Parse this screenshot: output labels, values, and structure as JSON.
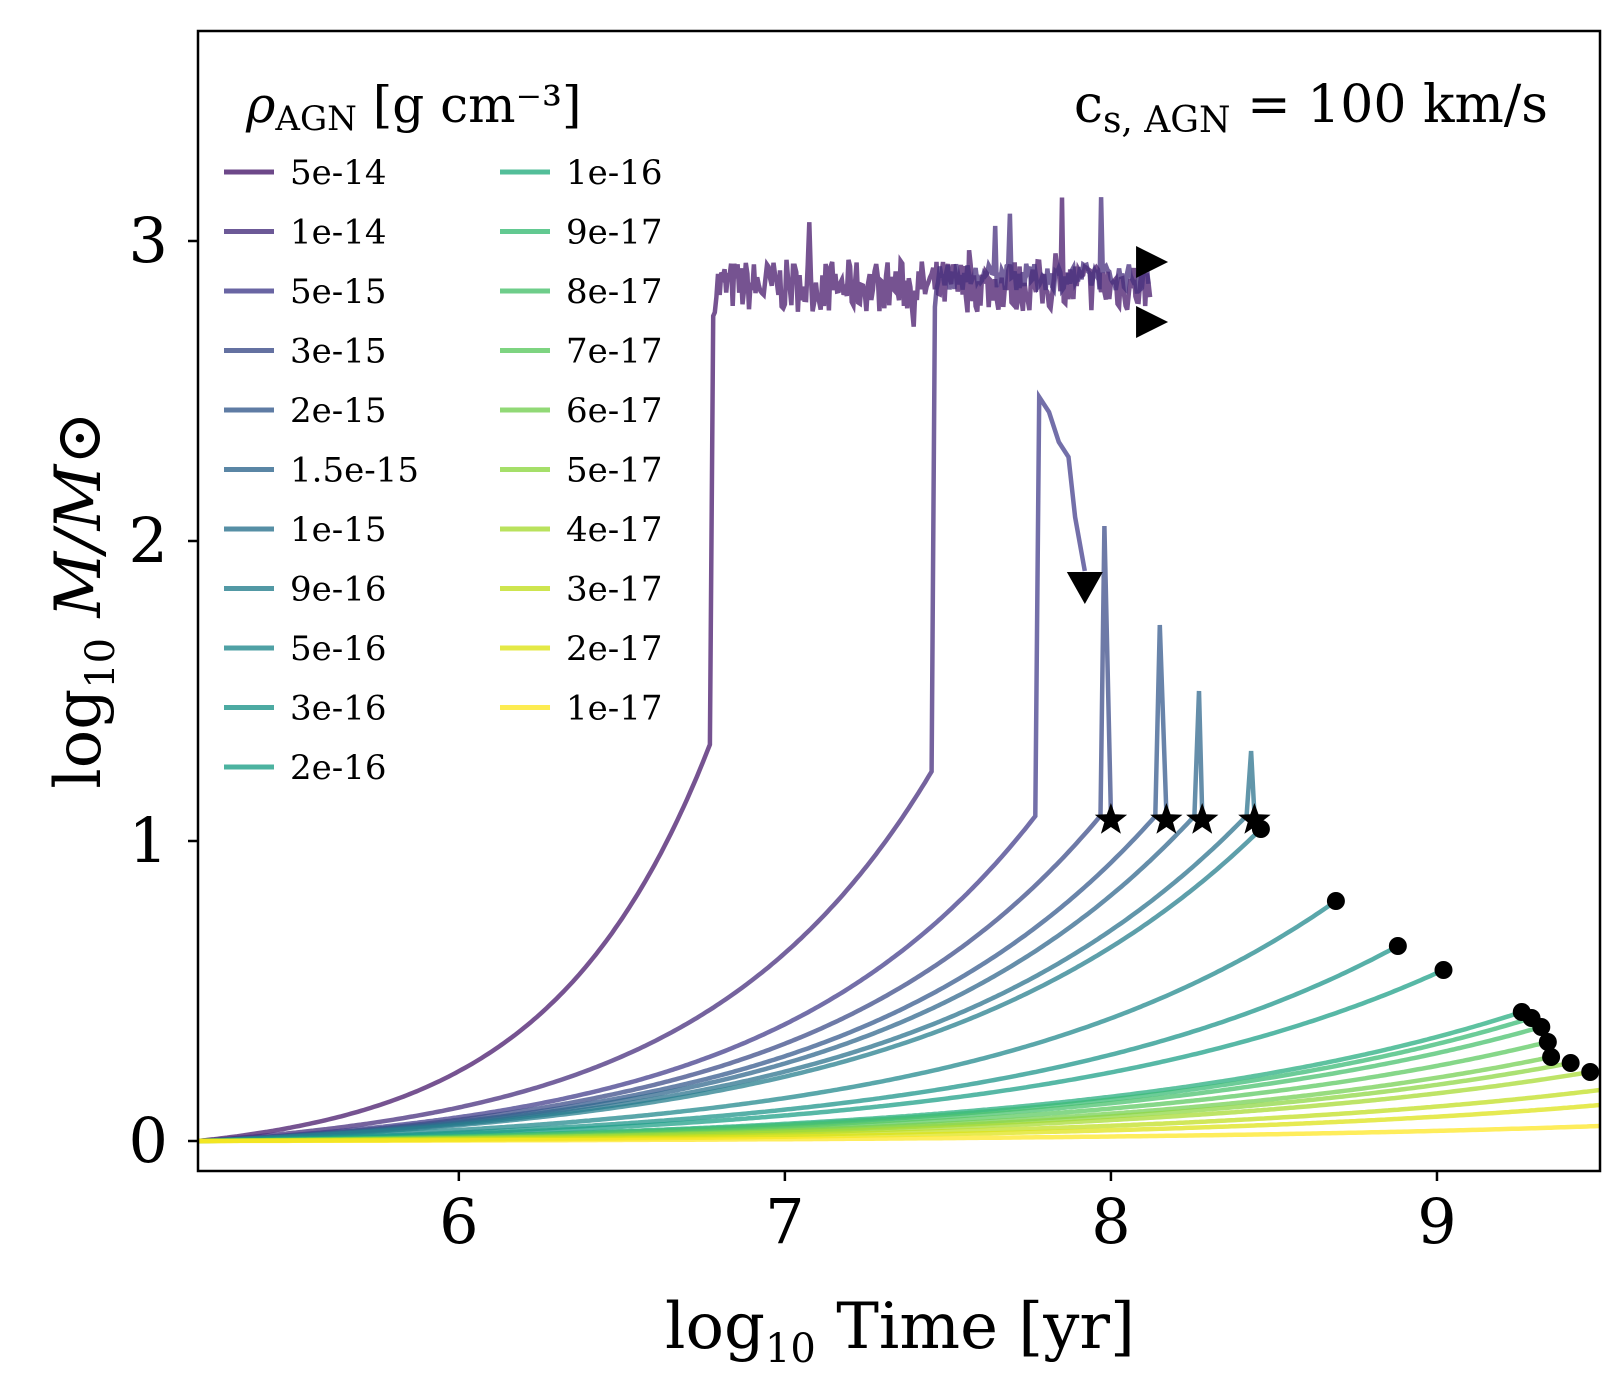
{
  "chart_data": {
    "type": "line",
    "xlabel": "log10 Time [yr]",
    "xlabel_main": "log",
    "xlabel_sub": "10",
    "xlabel_rest": " Time [yr]",
    "ylabel": "log10 M/M⊙",
    "ylabel_main": "log",
    "ylabel_sub": "10",
    "ylabel_rest": " M/M⊙",
    "xlim": [
      5.2,
      9.5
    ],
    "ylim": [
      -0.1,
      3.7
    ],
    "xticks": [
      6,
      7,
      8,
      9
    ],
    "yticks": [
      0,
      1,
      2,
      3
    ],
    "xtick_labels": [
      "6",
      "7",
      "8",
      "9"
    ],
    "ytick_labels": [
      "0",
      "1",
      "2",
      "3"
    ],
    "legend": {
      "title_rho": "ρ",
      "title_sub": "AGN",
      "title_rest": " [g cm⁻³]",
      "placement": "top-left",
      "columns": 2
    },
    "annotation": {
      "main": "c",
      "sub": "s, AGN",
      "rest": " = 100 km/s"
    },
    "series": [
      {
        "name": "5e-14",
        "color": "#481a6c",
        "t_form": 6.78,
        "end_x": 8.12,
        "end_marker": "triangle-right",
        "plateau": 2.85,
        "noise": 0.08
      },
      {
        "name": "1e-14",
        "color": "#472f7d",
        "t_form": 7.46,
        "end_x": 8.12,
        "end_marker": "triangle-right",
        "plateau": 2.88,
        "noise": 0.04
      },
      {
        "name": "5e-15",
        "color": "#443f8c",
        "t_form": 7.78,
        "peak": 2.48,
        "end_x": 7.92,
        "end_y": 1.85,
        "end_marker": "triangle-down"
      },
      {
        "name": "3e-15",
        "color": "#3d4e8a",
        "t_form": 7.98,
        "peak": 2.05,
        "end_x": 8.0,
        "end_y": 1.07,
        "end_marker": "star"
      },
      {
        "name": "2e-15",
        "color": "#375b8d",
        "t_form": 8.15,
        "peak": 1.72,
        "end_x": 8.17,
        "end_y": 1.07,
        "end_marker": "star"
      },
      {
        "name": "1.5e-15",
        "color": "#31688e",
        "t_form": 8.27,
        "peak": 1.5,
        "end_x": 8.28,
        "end_y": 1.07,
        "end_marker": "star"
      },
      {
        "name": "1e-15",
        "color": "#2c738e",
        "t_form": 8.43,
        "peak": 1.3,
        "end_x": 8.44,
        "end_y": 1.07,
        "end_marker": "star"
      },
      {
        "name": "9e-16",
        "color": "#277f8e",
        "end_x": 8.46,
        "end_y": 1.04,
        "end_marker": "dot"
      },
      {
        "name": "5e-16",
        "color": "#23898e",
        "end_x": 8.69,
        "end_y": 0.8,
        "end_marker": "dot"
      },
      {
        "name": "3e-16",
        "color": "#1f958b",
        "end_x": 8.88,
        "end_y": 0.65,
        "end_marker": "dot"
      },
      {
        "name": "2e-16",
        "color": "#1fa088",
        "end_x": 9.02,
        "end_y": 0.57,
        "end_marker": "dot"
      },
      {
        "name": "1e-16",
        "color": "#28ae80",
        "end_x": 9.26,
        "end_y": 0.43,
        "end_marker": "dot"
      },
      {
        "name": "9e-17",
        "color": "#3bbb75",
        "end_x": 9.29,
        "end_y": 0.41,
        "end_marker": "dot"
      },
      {
        "name": "8e-17",
        "color": "#4ac16d",
        "end_x": 9.32,
        "end_y": 0.38,
        "end_marker": "dot"
      },
      {
        "name": "7e-17",
        "color": "#5ec962",
        "end_x": 9.34,
        "end_y": 0.33,
        "end_marker": "dot"
      },
      {
        "name": "6e-17",
        "color": "#75d054",
        "end_x": 9.35,
        "end_y": 0.28,
        "end_marker": "dot"
      },
      {
        "name": "5e-17",
        "color": "#8fd744",
        "end_x": 9.41,
        "end_y": 0.26,
        "end_marker": "dot"
      },
      {
        "name": "4e-17",
        "color": "#a8db34",
        "end_x": 9.47,
        "end_y": 0.23,
        "end_marker": "dot"
      },
      {
        "name": "3e-17",
        "color": "#c2df23",
        "end_x": 9.5,
        "end_y": 0.17,
        "end_marker": "none"
      },
      {
        "name": "2e-17",
        "color": "#dde318",
        "end_x": 9.5,
        "end_y": 0.12,
        "end_marker": "none"
      },
      {
        "name": "1e-17",
        "color": "#fde725",
        "end_x": 9.5,
        "end_y": 0.05,
        "end_marker": "none"
      }
    ]
  }
}
